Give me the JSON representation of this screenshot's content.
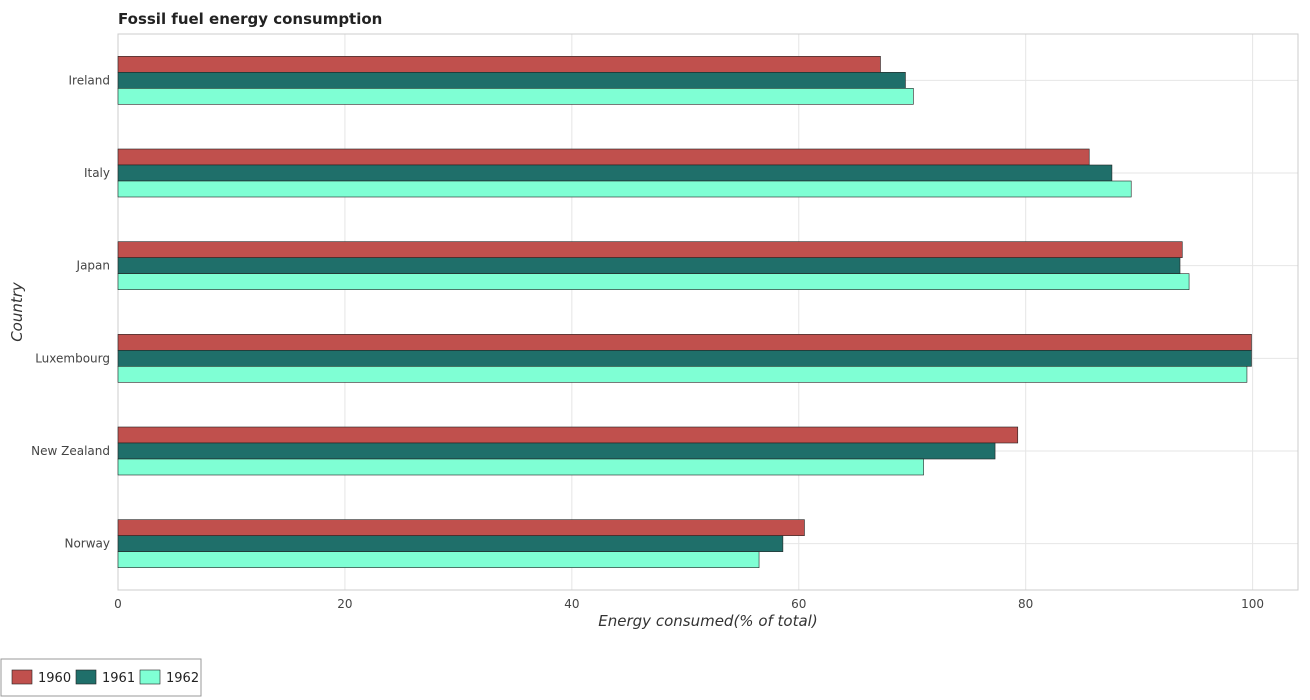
{
  "chart_data": {
    "type": "bar",
    "orientation": "horizontal",
    "title": "Fossil fuel energy consumption",
    "xlabel": "Energy consumed(% of total)",
    "ylabel": "Country",
    "categories": [
      "Ireland",
      "Italy",
      "Japan",
      "Luxembourg",
      "New Zealand",
      "Norway"
    ],
    "series": [
      {
        "name": "1960",
        "color": "#c0504d",
        "values": [
          67.2,
          85.6,
          93.8,
          99.9,
          79.3,
          60.5
        ]
      },
      {
        "name": "1961",
        "color": "#1f6f6a",
        "values": [
          69.4,
          87.6,
          93.6,
          99.9,
          77.3,
          58.6
        ]
      },
      {
        "name": "1962",
        "color": "#7fffd4",
        "values": [
          70.1,
          89.3,
          94.4,
          99.5,
          71.0,
          56.5
        ]
      }
    ],
    "xlim": [
      0,
      104
    ],
    "xticks": [
      0,
      20,
      40,
      60,
      80,
      100
    ],
    "grid": true,
    "legend_position": "bottom-left"
  }
}
